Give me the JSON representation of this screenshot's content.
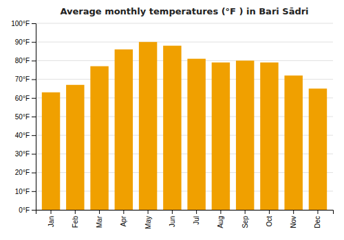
{
  "chart_data": {
    "type": "bar",
    "title": "Average monthly temperatures (°F ) in Bari Sādri",
    "categories": [
      "Jan",
      "Feb",
      "Mar",
      "Apr",
      "May",
      "Jun",
      "Jul",
      "Aug",
      "Sep",
      "Oct",
      "Nov",
      "Dec"
    ],
    "values": [
      63,
      67,
      77,
      86,
      90,
      88,
      81,
      79,
      80,
      79,
      72,
      65
    ],
    "color": "#F0A000",
    "ylim": [
      0,
      100
    ],
    "yticks": [
      {
        "value": 0,
        "label": "0°F"
      },
      {
        "value": 10,
        "label": "10°F"
      },
      {
        "value": 20,
        "label": "20°F"
      },
      {
        "value": 30,
        "label": "30°F"
      },
      {
        "value": 40,
        "label": "40°F"
      },
      {
        "value": 50,
        "label": "50°F"
      },
      {
        "value": 60,
        "label": "60°F"
      },
      {
        "value": 70,
        "label": "70°F"
      },
      {
        "value": 80,
        "label": "80°F"
      },
      {
        "value": 90,
        "label": "90°F"
      },
      {
        "value": 100,
        "label": "100°F"
      }
    ],
    "grid": true
  }
}
